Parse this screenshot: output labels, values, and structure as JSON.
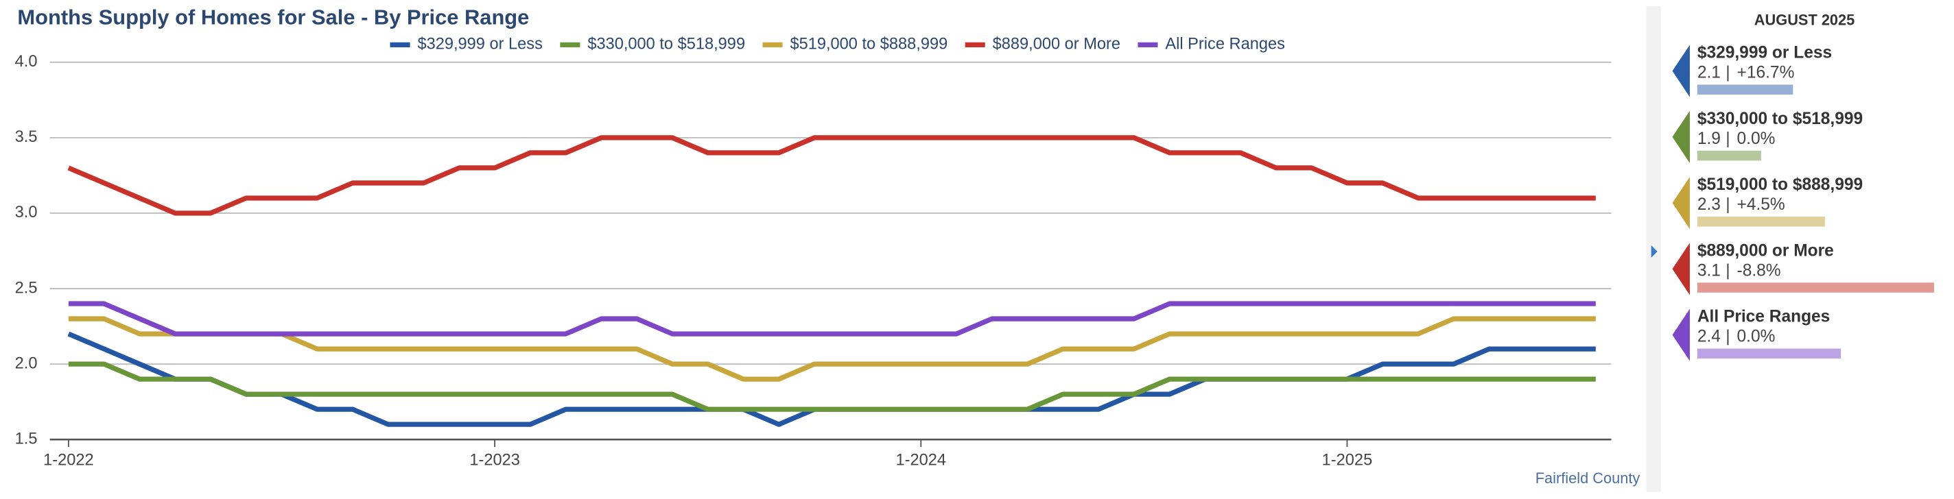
{
  "chart_data": {
    "type": "line",
    "title": "Months Supply of Homes for Sale - By Price Range",
    "categories": [
      "1-2022",
      null,
      null,
      null,
      null,
      null,
      null,
      null,
      null,
      null,
      null,
      null,
      "1-2023",
      null,
      null,
      null,
      null,
      null,
      null,
      null,
      null,
      null,
      null,
      null,
      "1-2024",
      null,
      null,
      null,
      null,
      null,
      null,
      null,
      null,
      null,
      null,
      null,
      "1-2025",
      null,
      null,
      null,
      null,
      null,
      null,
      null
    ],
    "series": [
      {
        "name": "$329,999 or Less",
        "color": "#2357a3",
        "values": [
          2.2,
          2.1,
          2.0,
          1.9,
          1.9,
          1.8,
          1.8,
          1.7,
          1.7,
          1.6,
          1.6,
          1.6,
          1.6,
          1.6,
          1.7,
          1.7,
          1.7,
          1.7,
          1.7,
          1.7,
          1.6,
          1.7,
          1.7,
          1.7,
          1.7,
          1.7,
          1.7,
          1.7,
          1.7,
          1.7,
          1.8,
          1.8,
          1.9,
          1.9,
          1.9,
          1.9,
          1.9,
          2.0,
          2.0,
          2.0,
          2.1,
          2.1,
          2.1,
          2.1
        ]
      },
      {
        "name": "$330,000 to $518,999",
        "color": "#6a963a",
        "values": [
          2.0,
          2.0,
          1.9,
          1.9,
          1.9,
          1.8,
          1.8,
          1.8,
          1.8,
          1.8,
          1.8,
          1.8,
          1.8,
          1.8,
          1.8,
          1.8,
          1.8,
          1.8,
          1.7,
          1.7,
          1.7,
          1.7,
          1.7,
          1.7,
          1.7,
          1.7,
          1.7,
          1.7,
          1.8,
          1.8,
          1.8,
          1.9,
          1.9,
          1.9,
          1.9,
          1.9,
          1.9,
          1.9,
          1.9,
          1.9,
          1.9,
          1.9,
          1.9,
          1.9
        ]
      },
      {
        "name": "$519,000 to $888,999",
        "color": "#c8a63c",
        "values": [
          2.3,
          2.3,
          2.2,
          2.2,
          2.2,
          2.2,
          2.2,
          2.1,
          2.1,
          2.1,
          2.1,
          2.1,
          2.1,
          2.1,
          2.1,
          2.1,
          2.1,
          2.0,
          2.0,
          1.9,
          1.9,
          2.0,
          2.0,
          2.0,
          2.0,
          2.0,
          2.0,
          2.0,
          2.1,
          2.1,
          2.1,
          2.2,
          2.2,
          2.2,
          2.2,
          2.2,
          2.2,
          2.2,
          2.2,
          2.3,
          2.3,
          2.3,
          2.3,
          2.3
        ]
      },
      {
        "name": "$889,000 or More",
        "color": "#c8322a",
        "values": [
          3.3,
          3.2,
          3.1,
          3.0,
          3.0,
          3.1,
          3.1,
          3.1,
          3.2,
          3.2,
          3.2,
          3.3,
          3.3,
          3.4,
          3.4,
          3.5,
          3.5,
          3.5,
          3.4,
          3.4,
          3.4,
          3.5,
          3.5,
          3.5,
          3.5,
          3.5,
          3.5,
          3.5,
          3.5,
          3.5,
          3.5,
          3.4,
          3.4,
          3.4,
          3.3,
          3.3,
          3.2,
          3.2,
          3.1,
          3.1,
          3.1,
          3.1,
          3.1,
          3.1
        ]
      },
      {
        "name": "All Price Ranges",
        "color": "#7d46c6",
        "values": [
          2.4,
          2.4,
          2.3,
          2.2,
          2.2,
          2.2,
          2.2,
          2.2,
          2.2,
          2.2,
          2.2,
          2.2,
          2.2,
          2.2,
          2.2,
          2.3,
          2.3,
          2.2,
          2.2,
          2.2,
          2.2,
          2.2,
          2.2,
          2.2,
          2.2,
          2.2,
          2.3,
          2.3,
          2.3,
          2.3,
          2.3,
          2.4,
          2.4,
          2.4,
          2.4,
          2.4,
          2.4,
          2.4,
          2.4,
          2.4,
          2.4,
          2.4,
          2.4,
          2.4
        ]
      }
    ],
    "ylim": [
      1.5,
      4.0
    ],
    "yticks": [
      1.5,
      {
        "value": 2.0,
        "label": "2.0"
      },
      2.5,
      {
        "value": 3.0,
        "label": "3.0"
      },
      3.5,
      {
        "value": 4.0,
        "label": "4.0"
      }
    ],
    "grid": true,
    "legend": "top",
    "footnote": "Fairfield County",
    "panel": {
      "title": "AUGUST 2025",
      "items": [
        {
          "name": "$329,999 or Less",
          "value": 2.1,
          "change": "+16.7%",
          "color": "#2a5ea8",
          "bar_color": "#97afd6"
        },
        {
          "name": "$330,000 to $518,999",
          "value": 1.9,
          "change": "0.0%",
          "color": "#6a8f3a",
          "bar_color": "#b5c79d"
        },
        {
          "name": "$519,000 to $888,999",
          "value": 2.3,
          "change": "+4.5%",
          "color": "#c4a43a",
          "bar_color": "#e0d19c"
        },
        {
          "name": "$889,000 or More",
          "value": 3.1,
          "change": "-8.8%",
          "color": "#c0302a",
          "bar_color": "#e39894"
        },
        {
          "name": "All Price Ranges",
          "value": 2.4,
          "change": "0.0%",
          "color": "#7b48c8",
          "bar_color": "#bca3e3"
        }
      ]
    }
  }
}
